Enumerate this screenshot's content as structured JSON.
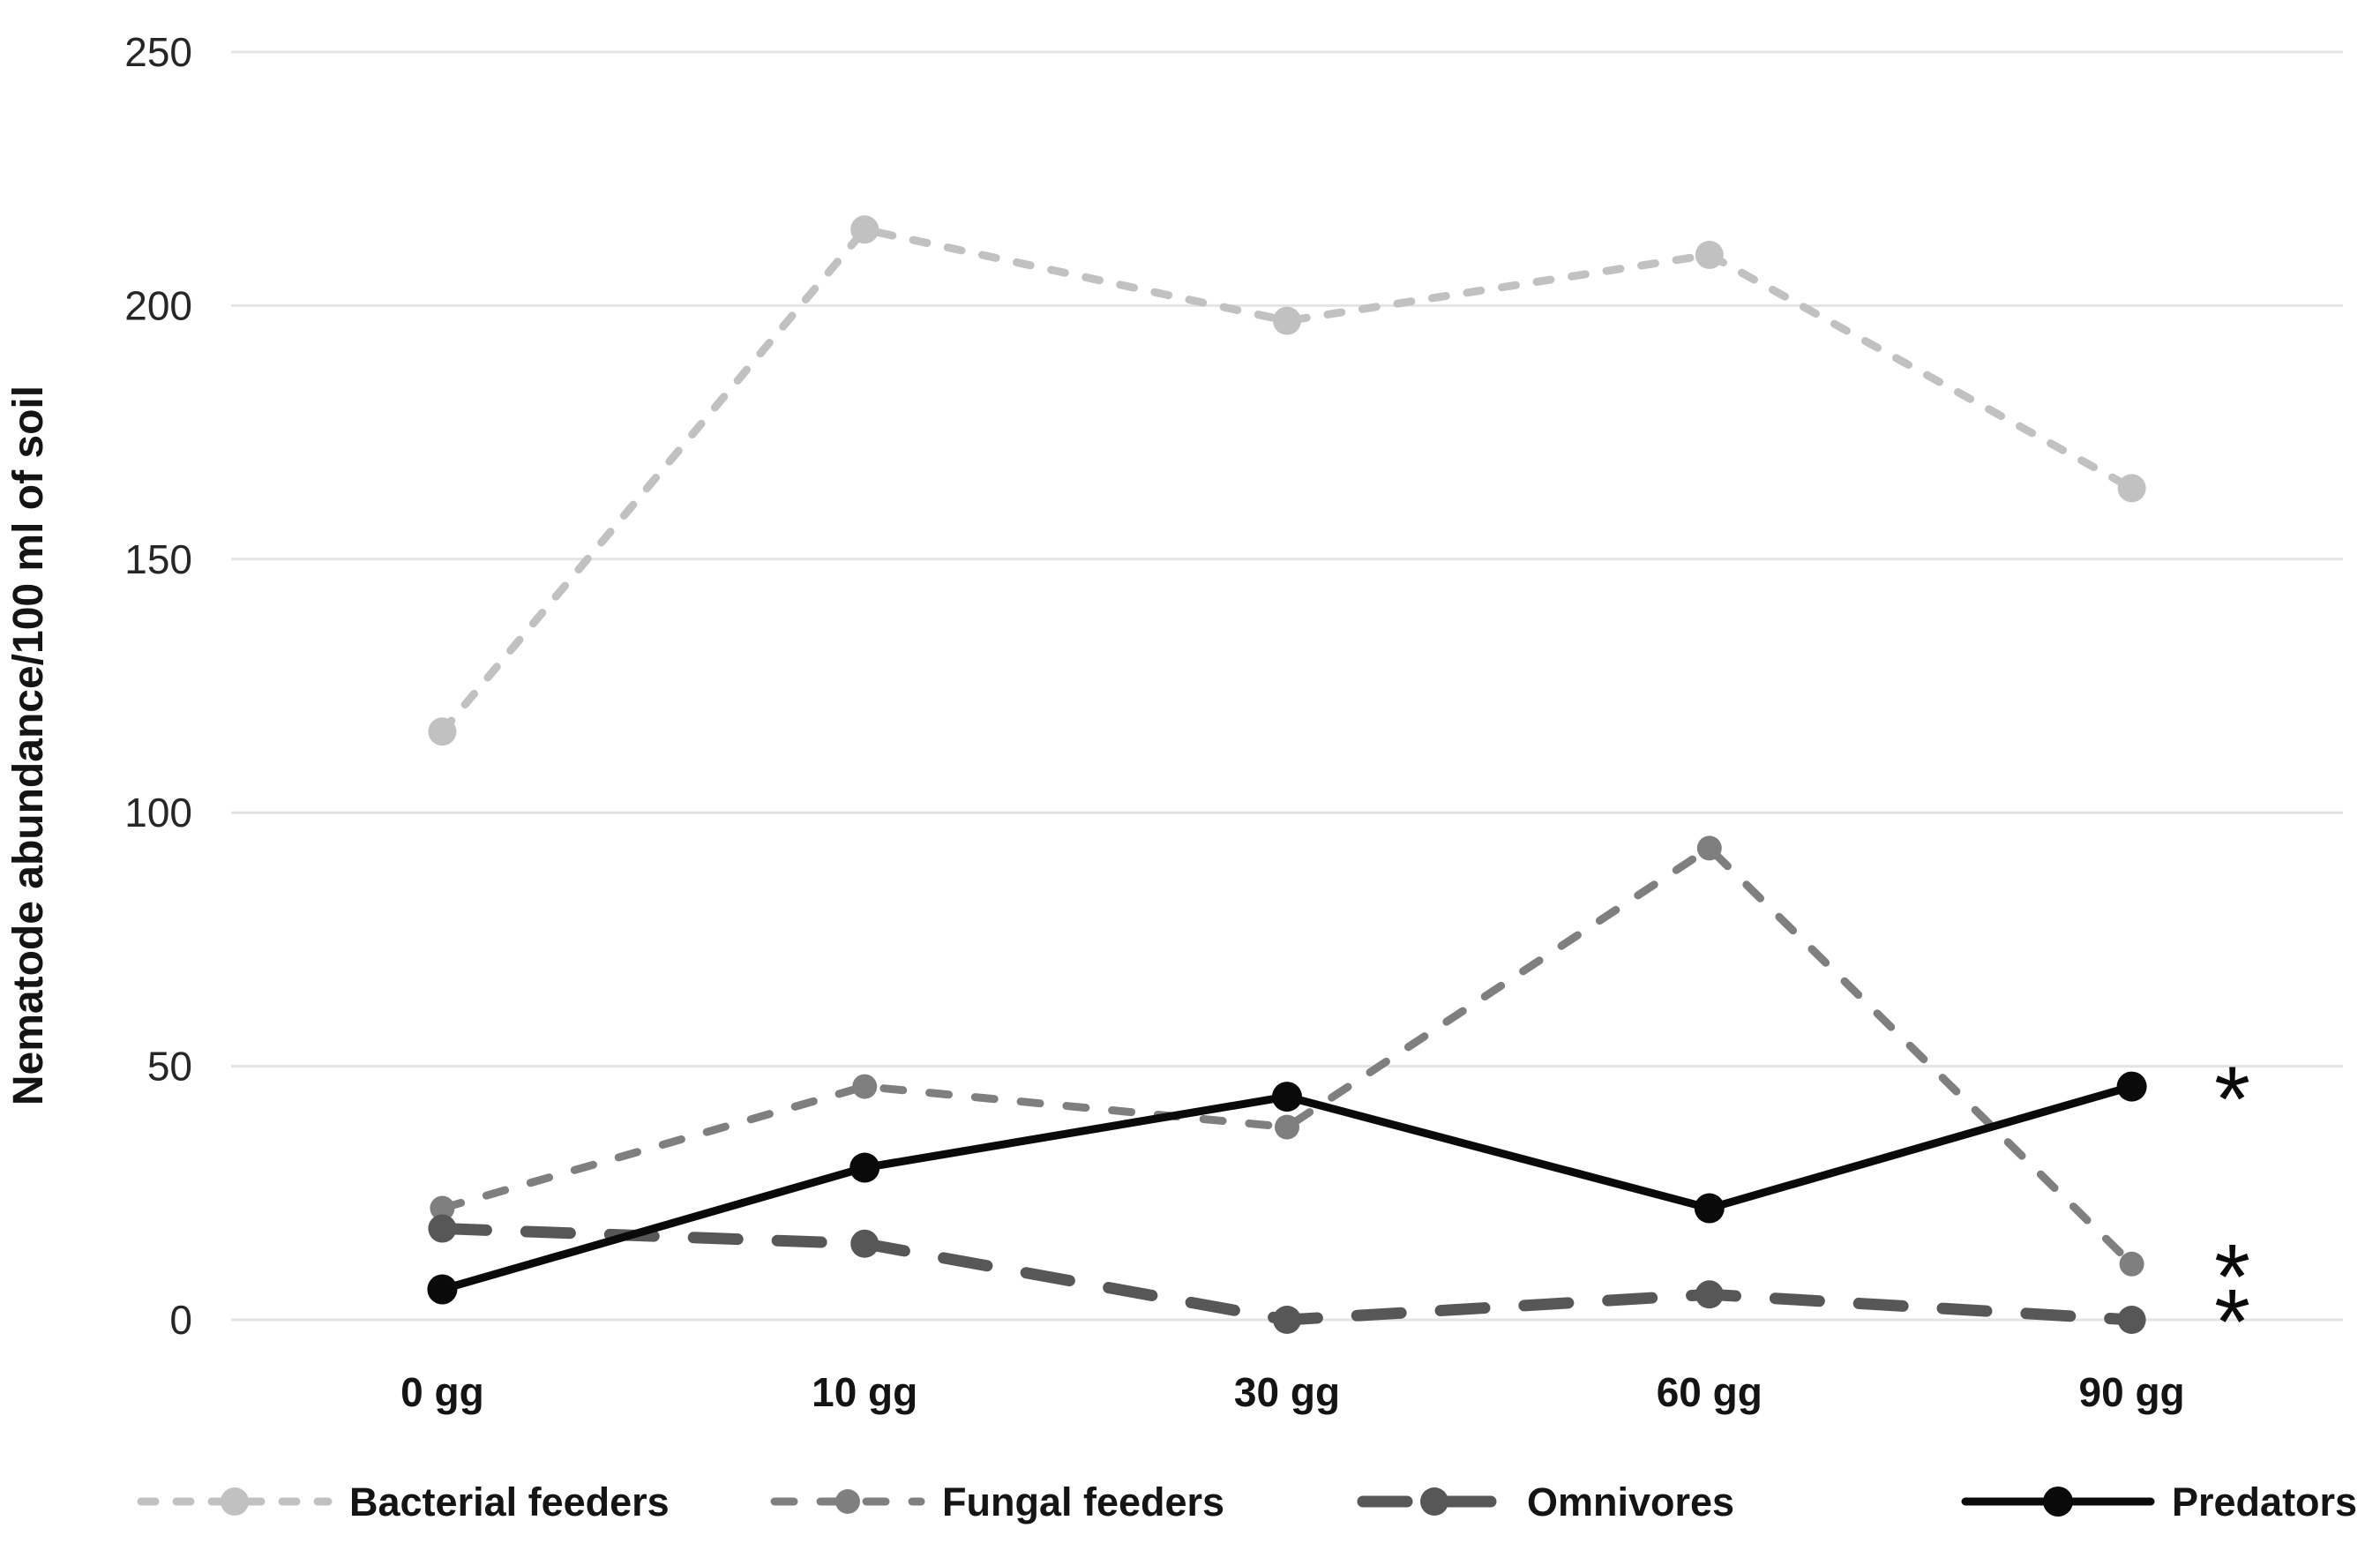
{
  "chart_data": {
    "type": "line",
    "title": "",
    "xlabel": "",
    "ylabel": "Nematode abundance/100 ml of soil",
    "categories": [
      "0 gg",
      "10 gg",
      "30 gg",
      "60 gg",
      "90 gg"
    ],
    "axis": {
      "ylim": [
        0,
        250
      ],
      "yticks": [
        0,
        50,
        100,
        150,
        200,
        250
      ],
      "grid": true
    },
    "series": [
      {
        "name": "Bacterial feeders",
        "values": [
          116,
          215,
          197,
          210,
          164
        ],
        "color": "#c1c1c1",
        "line_style": "dash-small"
      },
      {
        "name": "Fungal feeders",
        "values": [
          22,
          46,
          38,
          93,
          11
        ],
        "color": "#7f7f7f",
        "line_style": "dash-medium"
      },
      {
        "name": "Omnivores",
        "values": [
          18,
          15,
          0,
          5,
          0
        ],
        "color": "#575757",
        "line_style": "dash-long"
      },
      {
        "name": "Predators",
        "values": [
          6,
          30,
          44,
          22,
          46
        ],
        "color": "#0a0a0a",
        "line_style": "solid"
      }
    ],
    "legend": {
      "position": "bottom"
    },
    "annotations": [
      {
        "symbol": "*",
        "series": "Predators",
        "category": "90 gg",
        "value": 46
      },
      {
        "symbol": "*",
        "series": "Fungal feeders",
        "category": "90 gg",
        "value": 11
      },
      {
        "symbol": "*",
        "series": "Omnivores",
        "category": "90 gg",
        "value": 0
      }
    ],
    "colors": {
      "grid": "#e4e4e4",
      "tick_text": "#262626",
      "label_text": "#141414",
      "background": "#ffffff"
    }
  }
}
